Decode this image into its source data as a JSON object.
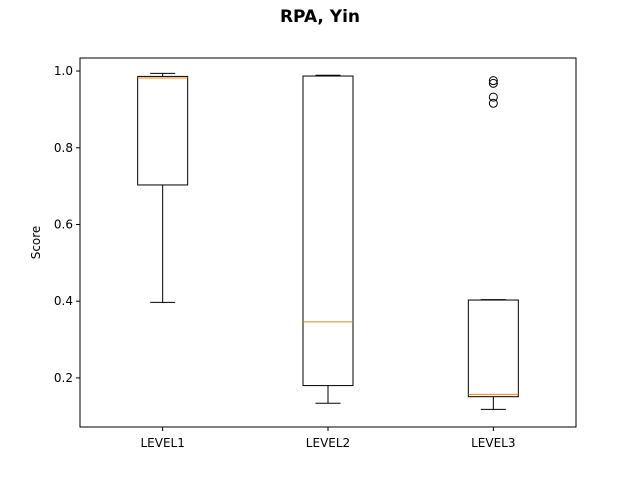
{
  "chart_data": {
    "type": "box",
    "title": "RPA, Yin",
    "xlabel": "",
    "ylabel": "Score",
    "ylim": [
      0.072,
      1.034
    ],
    "yticks": [
      0.2,
      0.4,
      0.6,
      0.8,
      1.0
    ],
    "ytick_labels": [
      "0.2",
      "0.4",
      "0.6",
      "0.8",
      "1.0"
    ],
    "categories": [
      "LEVEL1",
      "LEVEL2",
      "LEVEL3"
    ],
    "boxes": [
      {
        "category": "LEVEL1",
        "whisker_low": 0.397,
        "q1": 0.703,
        "median": 0.982,
        "q3": 0.986,
        "whisker_high": 0.994,
        "outliers": []
      },
      {
        "category": "LEVEL2",
        "whisker_low": 0.134,
        "q1": 0.18,
        "median": 0.346,
        "q3": 0.987,
        "whisker_high": 0.989,
        "outliers": []
      },
      {
        "category": "LEVEL3",
        "whisker_low": 0.118,
        "q1": 0.151,
        "median": 0.157,
        "q3": 0.403,
        "whisker_high": 0.404,
        "outliers": [
          0.975,
          0.968,
          0.932,
          0.916
        ]
      }
    ],
    "grid": false,
    "legend": "none",
    "colors": {
      "box": "#000000",
      "median": "#ff7f0e",
      "background": "#ffffff"
    }
  }
}
